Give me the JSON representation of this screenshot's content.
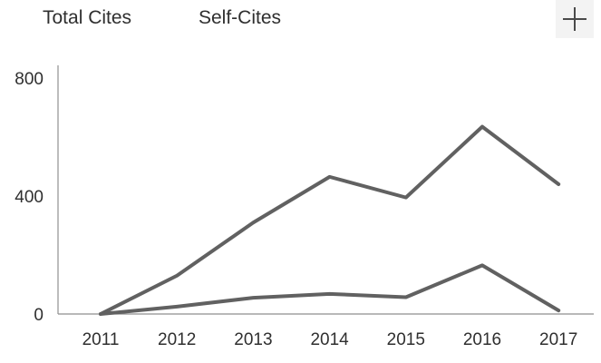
{
  "header": {
    "tabs": [
      {
        "label": "Total Cites"
      },
      {
        "label": "Self-Cites"
      }
    ],
    "add_icon": "plus-icon"
  },
  "chart_data": {
    "type": "line",
    "x": [
      "2011",
      "2012",
      "2013",
      "2014",
      "2015",
      "2016",
      "2017"
    ],
    "series": [
      {
        "name": "Total Cites",
        "values": [
          0,
          130,
          310,
          465,
          395,
          635,
          440
        ]
      },
      {
        "name": "Self-Cites",
        "values": [
          0,
          25,
          55,
          68,
          57,
          165,
          12
        ]
      }
    ],
    "ylim": [
      0,
      800
    ],
    "yticks": [
      "0",
      "400",
      "800"
    ],
    "xlabel": "",
    "ylabel": "",
    "grid": false,
    "line_color": "#616161",
    "axis_color": "#8f8f8f"
  }
}
